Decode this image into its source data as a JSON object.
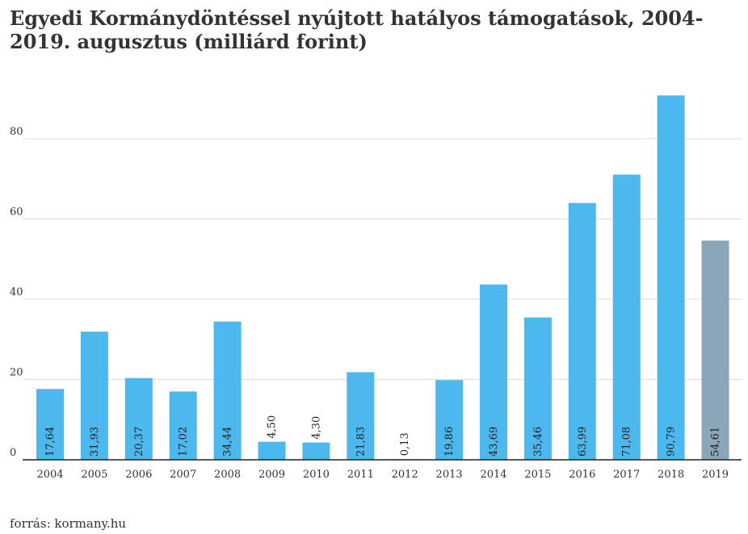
{
  "chart_data": {
    "type": "bar",
    "title": "Egyedi Kormánydöntéssel nyújtott hatályos támogatások, 2004-2019. augusztus (milliárd forint)",
    "categories": [
      "2004",
      "2005",
      "2006",
      "2007",
      "2008",
      "2009",
      "2010",
      "2011",
      "2012",
      "2013",
      "2014",
      "2015",
      "2016",
      "2017",
      "2018",
      "2019"
    ],
    "values": [
      17.64,
      31.93,
      20.37,
      17.02,
      34.44,
      4.5,
      4.3,
      21.83,
      0.13,
      19.86,
      43.69,
      35.46,
      63.99,
      71.08,
      90.79,
      54.61
    ],
    "value_labels": [
      "17,64",
      "31,93",
      "20,37",
      "17,02",
      "34,44",
      "4,50",
      "4,30",
      "21,83",
      "0,13",
      "19,86",
      "43,69",
      "35,46",
      "63,99",
      "71,08",
      "90,79",
      "54,61"
    ],
    "yticks": [
      0,
      20,
      40,
      60,
      80
    ],
    "ylim": [
      0,
      92
    ],
    "grid": true,
    "colors": {
      "bar": "#4db8ee",
      "highlight_bar": "#8aa6b8"
    },
    "highlight_category": "2019"
  },
  "source": "forrás: kormany.hu"
}
